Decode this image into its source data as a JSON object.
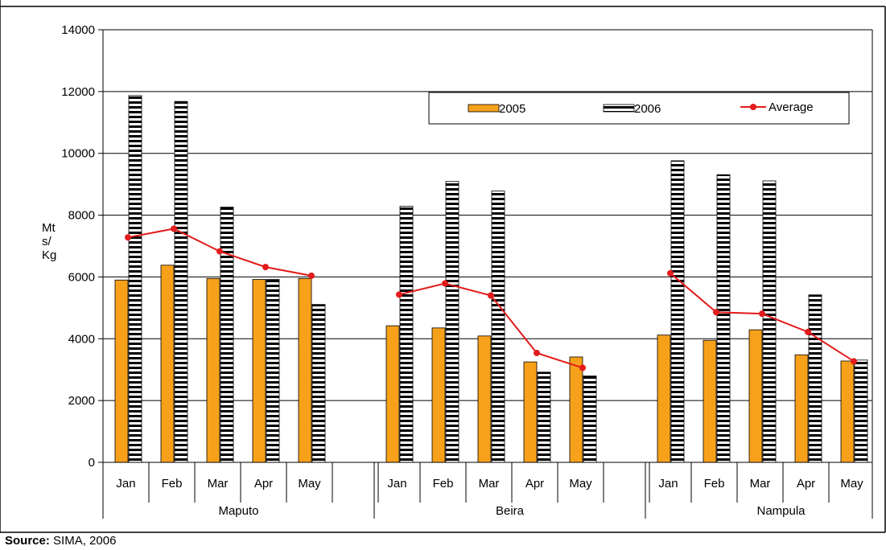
{
  "source": {
    "label": "Source:",
    "text": "SIMA, 2006"
  },
  "colors": {
    "bar_2005": "#F7A11A",
    "bar_2005_edge": "#000000",
    "bar_2006_stripe_dark": "#000000",
    "bar_2006_stripe_light": "#ffffff",
    "average_line": "#E31B1B",
    "gridline": "#000000"
  },
  "chart_data": {
    "type": "bar",
    "title": "",
    "xlabel": "",
    "ylabel": "Mt s/ Kg",
    "ylabel_lines": [
      "Mt",
      "s/",
      "Kg"
    ],
    "ylim": [
      0,
      14000
    ],
    "yticks": [
      0,
      2000,
      4000,
      6000,
      8000,
      10000,
      12000,
      14000
    ],
    "grid": true,
    "legend_placement": "upper-right inside plot",
    "groups": [
      "Maputo",
      "Beira",
      "Nampula"
    ],
    "categories": [
      "Jan",
      "Feb",
      "Mar",
      "Apr",
      "May"
    ],
    "series": [
      {
        "name": "2005",
        "kind": "bar",
        "values": [
          [
            5900,
            6380,
            5950,
            5920,
            5950
          ],
          [
            4420,
            4350,
            4090,
            3250,
            3410
          ],
          [
            4120,
            3950,
            4290,
            3480,
            3280
          ]
        ]
      },
      {
        "name": "2006",
        "kind": "bar",
        "values": [
          [
            11870,
            11680,
            8260,
            5920,
            5110
          ],
          [
            8290,
            9090,
            8780,
            2920,
            2800
          ],
          [
            9760,
            9310,
            9110,
            5420,
            3310
          ]
        ]
      },
      {
        "name": "Average",
        "kind": "line",
        "values": [
          [
            7280,
            7560,
            6830,
            6320,
            6040
          ],
          [
            5430,
            5790,
            5400,
            3540,
            3060
          ],
          [
            6120,
            4860,
            4810,
            4220,
            3270
          ]
        ]
      }
    ]
  }
}
